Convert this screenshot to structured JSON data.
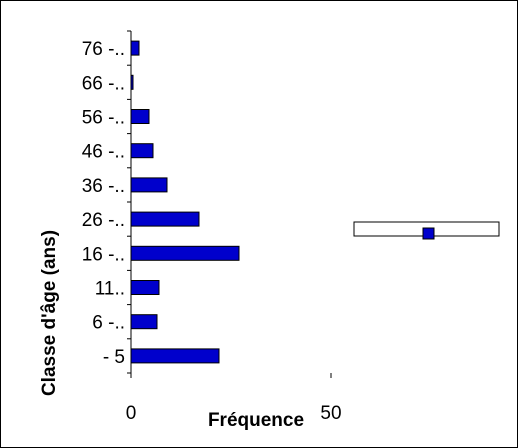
{
  "chart_data": {
    "type": "bar",
    "orientation": "horizontal",
    "categories": [
      "- 5",
      "6 -..",
      "11..",
      "16 -..",
      "26 -..",
      "36 -..",
      "46 -..",
      "56 -..",
      "66 -..",
      "76 -.."
    ],
    "series": [
      {
        "values": [
          22,
          6.5,
          7,
          27,
          17,
          9,
          5.5,
          4.5,
          0.5,
          2
        ],
        "color": "#0000cc"
      }
    ],
    "xlabel": "Fréquence",
    "ylabel": "Classe d'âge (ans)",
    "xlim": [
      0,
      50
    ],
    "x_ticks": [
      0,
      50
    ],
    "grid": false,
    "legend": {
      "placement": "right",
      "marker_color": "#0000cc"
    }
  }
}
